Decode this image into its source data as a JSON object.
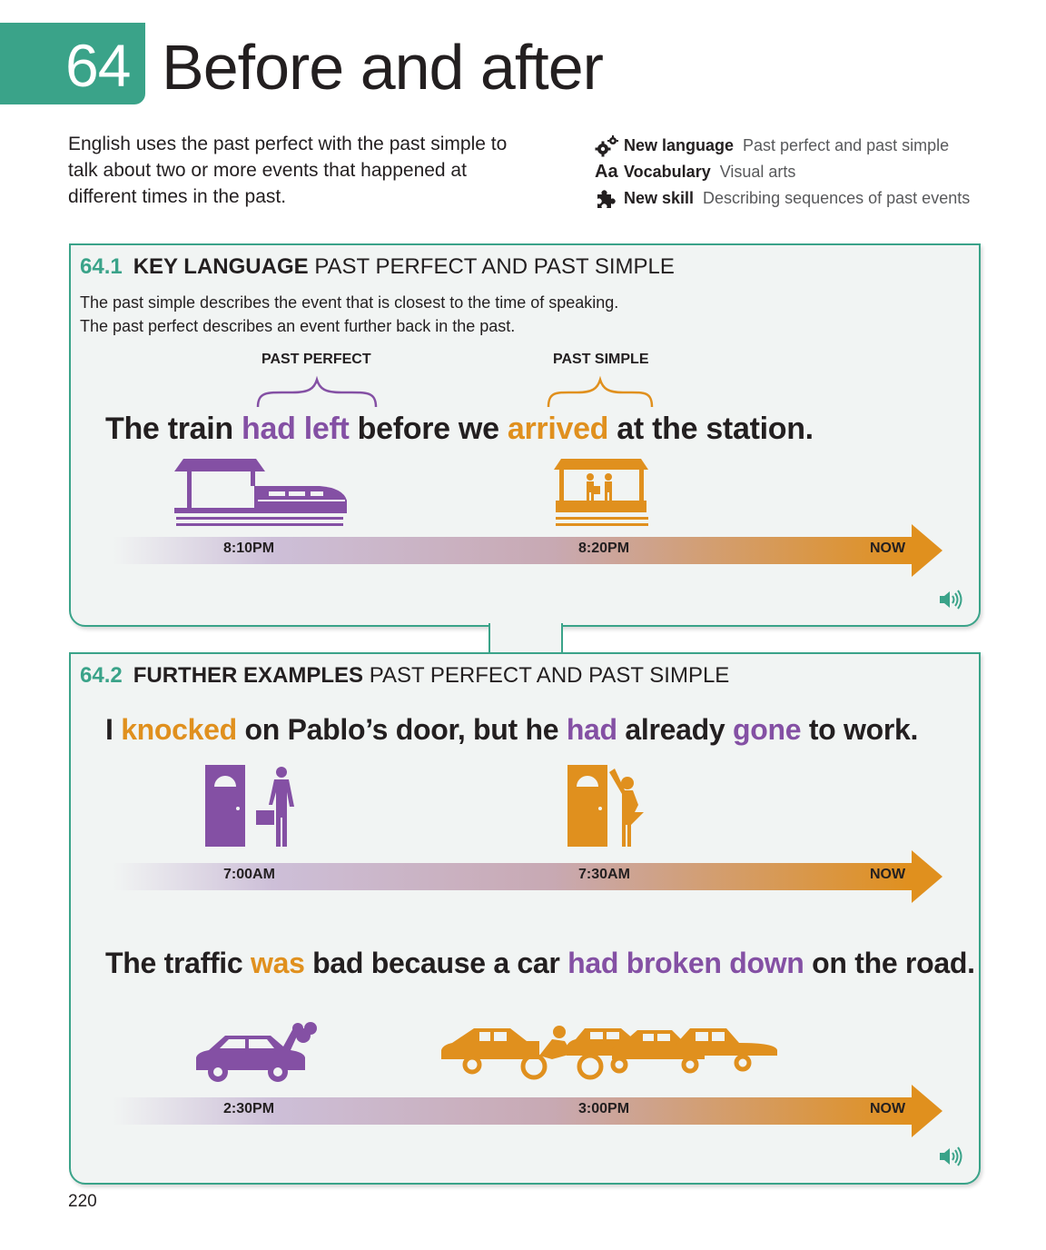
{
  "unit": {
    "number": "64",
    "title": "Before and after"
  },
  "intro": "English uses the past perfect with the past simple to talk about two or more events that happened at different times in the past.",
  "meta": [
    {
      "icon": "gears-icon",
      "key": "New language",
      "value": "Past perfect and past simple"
    },
    {
      "icon": "aa-icon",
      "icon_text": "Aa",
      "key": "Vocabulary",
      "value": "Visual arts"
    },
    {
      "icon": "puzzle-icon",
      "key": "New skill",
      "value": "Describing sequences of past events"
    }
  ],
  "colors": {
    "accent": "#3aa389",
    "purple": "#8450a4",
    "orange": "#e0901e",
    "panel_bg": "#f1f4f3"
  },
  "section1": {
    "number": "64.1",
    "key": "KEY LANGUAGE",
    "sub": "PAST PERFECT AND PAST SIMPLE",
    "desc1": "The past simple describes the event that is closest to the time of speaking.",
    "desc2": "The past perfect describes an event further back in the past.",
    "label_perfect": "PAST PERFECT",
    "label_simple": "PAST SIMPLE",
    "sentence": [
      "The train ",
      "had left",
      " before we ",
      "arrived",
      " at the station."
    ],
    "times": [
      "8:10PM",
      "8:20PM",
      "NOW"
    ]
  },
  "section2": {
    "number": "64.2",
    "key": "FURTHER EXAMPLES",
    "sub": "PAST PERFECT AND PAST SIMPLE",
    "example1": {
      "sentence": [
        "I ",
        "knocked",
        " on Pablo’s door, but he ",
        "had",
        " already ",
        "gone",
        " to work."
      ],
      "times": [
        "7:00AM",
        "7:30AM",
        "NOW"
      ]
    },
    "example2": {
      "sentence": [
        "The traffic ",
        "was",
        " bad because a car ",
        "had broken down",
        " on the road."
      ],
      "times": [
        "2:30PM",
        "3:00PM",
        "NOW"
      ]
    }
  },
  "page_number": "220"
}
